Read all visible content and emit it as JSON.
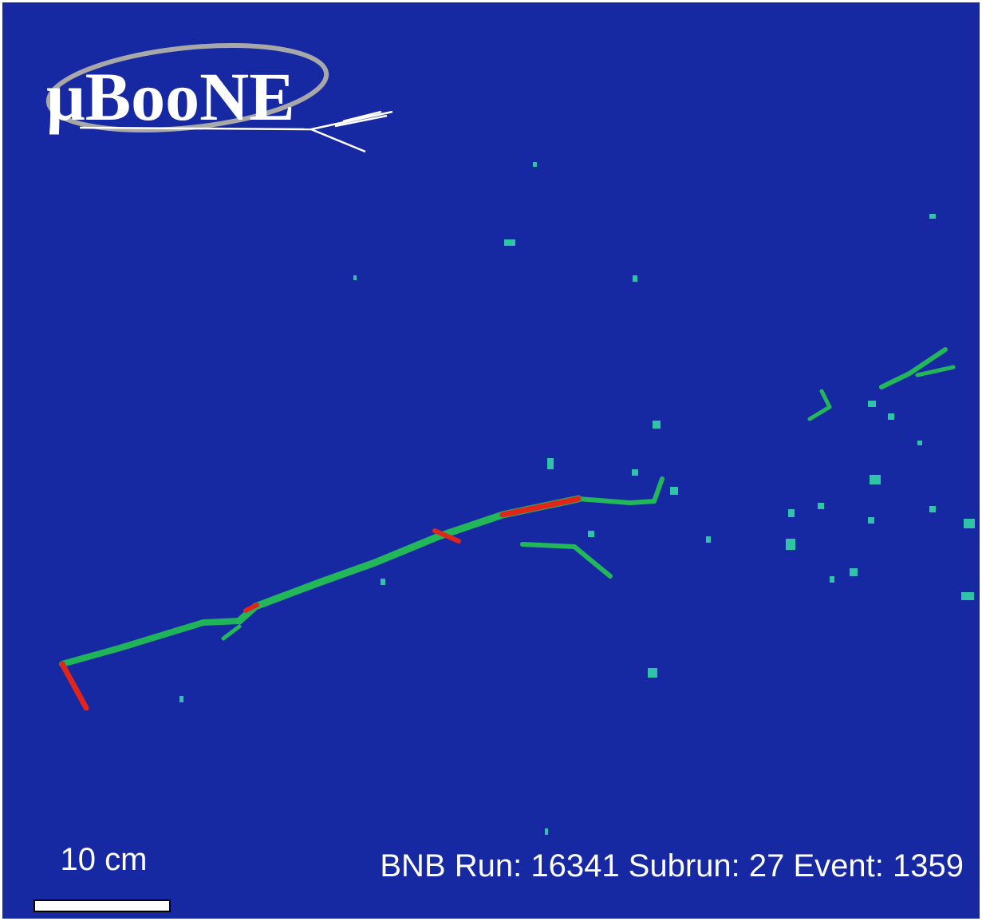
{
  "logo": {
    "text": "μBooNE"
  },
  "scale_bar": {
    "label": "10 cm"
  },
  "event_info": "BNB Run: 16341 Subrun: 27 Event: 1359"
}
